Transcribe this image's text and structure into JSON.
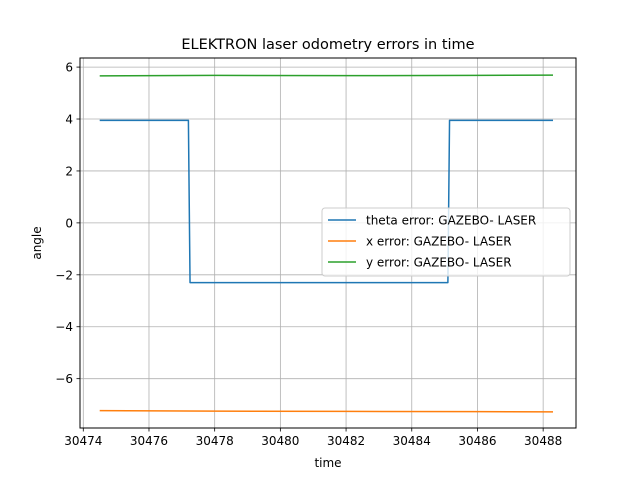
{
  "chart_data": {
    "type": "line",
    "title": "ELEKTRON laser odometry errors in time",
    "xlabel": "time",
    "ylabel": "angle",
    "xlim": [
      30473.9,
      30489.0
    ],
    "ylim": [
      -7.9,
      6.35
    ],
    "xticks": [
      30474,
      30476,
      30478,
      30480,
      30482,
      30484,
      30486,
      30488
    ],
    "yticks": [
      -6,
      -4,
      -2,
      0,
      2,
      4,
      6
    ],
    "grid": true,
    "legend_position": "center-right",
    "series": [
      {
        "name": "theta error: GAZEBO- LASER",
        "color": "#1f77b4",
        "x": [
          30474.5,
          30477.2,
          30477.25,
          30485.1,
          30485.15,
          30488.3
        ],
        "y": [
          3.95,
          3.95,
          -2.3,
          -2.3,
          3.95,
          3.95
        ]
      },
      {
        "name": "x error: GAZEBO- LASER",
        "color": "#ff7f0e",
        "x": [
          30474.5,
          30478.0,
          30482.0,
          30486.0,
          30488.3
        ],
        "y": [
          -7.23,
          -7.25,
          -7.26,
          -7.27,
          -7.28
        ]
      },
      {
        "name": "y error: GAZEBO- LASER",
        "color": "#2ca02c",
        "x": [
          30474.5,
          30478.0,
          30482.0,
          30486.0,
          30488.3
        ],
        "y": [
          5.66,
          5.68,
          5.67,
          5.68,
          5.69
        ]
      }
    ]
  }
}
